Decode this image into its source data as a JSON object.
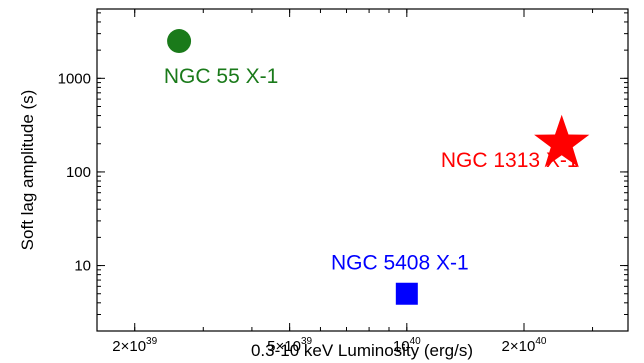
{
  "chart_data": {
    "type": "scatter",
    "xlabel": "0.3-10 keV Luminosity (erg/s)",
    "ylabel": "Soft lag amplitude (s)",
    "xscale": "log",
    "yscale": "log",
    "xlim": [
      1.6e+39,
      3.7e+40
    ],
    "ylim": [
      2,
      5500
    ],
    "grid": false,
    "legend": "none",
    "xticks": [
      {
        "value": 2e+39,
        "base": "2×10",
        "exp": "39"
      },
      {
        "value": 5e+39,
        "base": "5×10",
        "exp": "39"
      },
      {
        "value": 1e+40,
        "base": "10",
        "exp": "40"
      },
      {
        "value": 2e+40,
        "base": "2×10",
        "exp": "40"
      }
    ],
    "yticks": [
      {
        "value": 10,
        "label": "10"
      },
      {
        "value": 100,
        "label": "100"
      },
      {
        "value": 1000,
        "label": "1000"
      }
    ],
    "series": [
      {
        "label": "NGC 55 X-1",
        "x": 2.6e+39,
        "y": 2500,
        "marker": "circle",
        "color": "#1a7a1a"
      },
      {
        "label": "NGC 1313 X-1",
        "x": 2.5e+40,
        "y": 200,
        "marker": "star",
        "color": "#ff0000"
      },
      {
        "label": "NGC 5408 X-1",
        "x": 1e+40,
        "y": 5,
        "marker": "square",
        "color": "#0000ff"
      }
    ]
  }
}
